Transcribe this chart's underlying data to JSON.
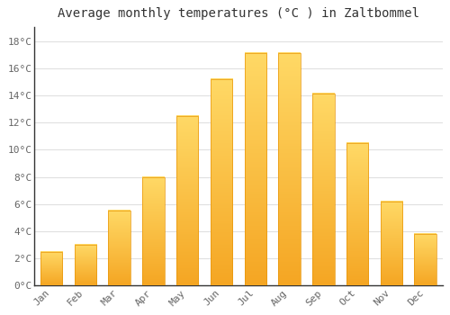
{
  "title": "Average monthly temperatures (°C ) in Zaltbommel",
  "months": [
    "Jan",
    "Feb",
    "Mar",
    "Apr",
    "May",
    "Jun",
    "Jul",
    "Aug",
    "Sep",
    "Oct",
    "Nov",
    "Dec"
  ],
  "values": [
    2.5,
    3.0,
    5.5,
    8.0,
    12.5,
    15.2,
    17.1,
    17.1,
    14.1,
    10.5,
    6.2,
    3.8
  ],
  "bar_color_bottom": "#F5A623",
  "bar_color_top": "#FFD966",
  "ylim": [
    0,
    19
  ],
  "yticks": [
    0,
    2,
    4,
    6,
    8,
    10,
    12,
    14,
    16,
    18
  ],
  "ytick_labels": [
    "0°C",
    "2°C",
    "4°C",
    "6°C",
    "8°C",
    "10°C",
    "12°C",
    "14°C",
    "16°C",
    "18°C"
  ],
  "grid_color": "#e0e0e0",
  "background_color": "#ffffff",
  "title_fontsize": 10,
  "tick_fontsize": 8,
  "bar_width": 0.65
}
